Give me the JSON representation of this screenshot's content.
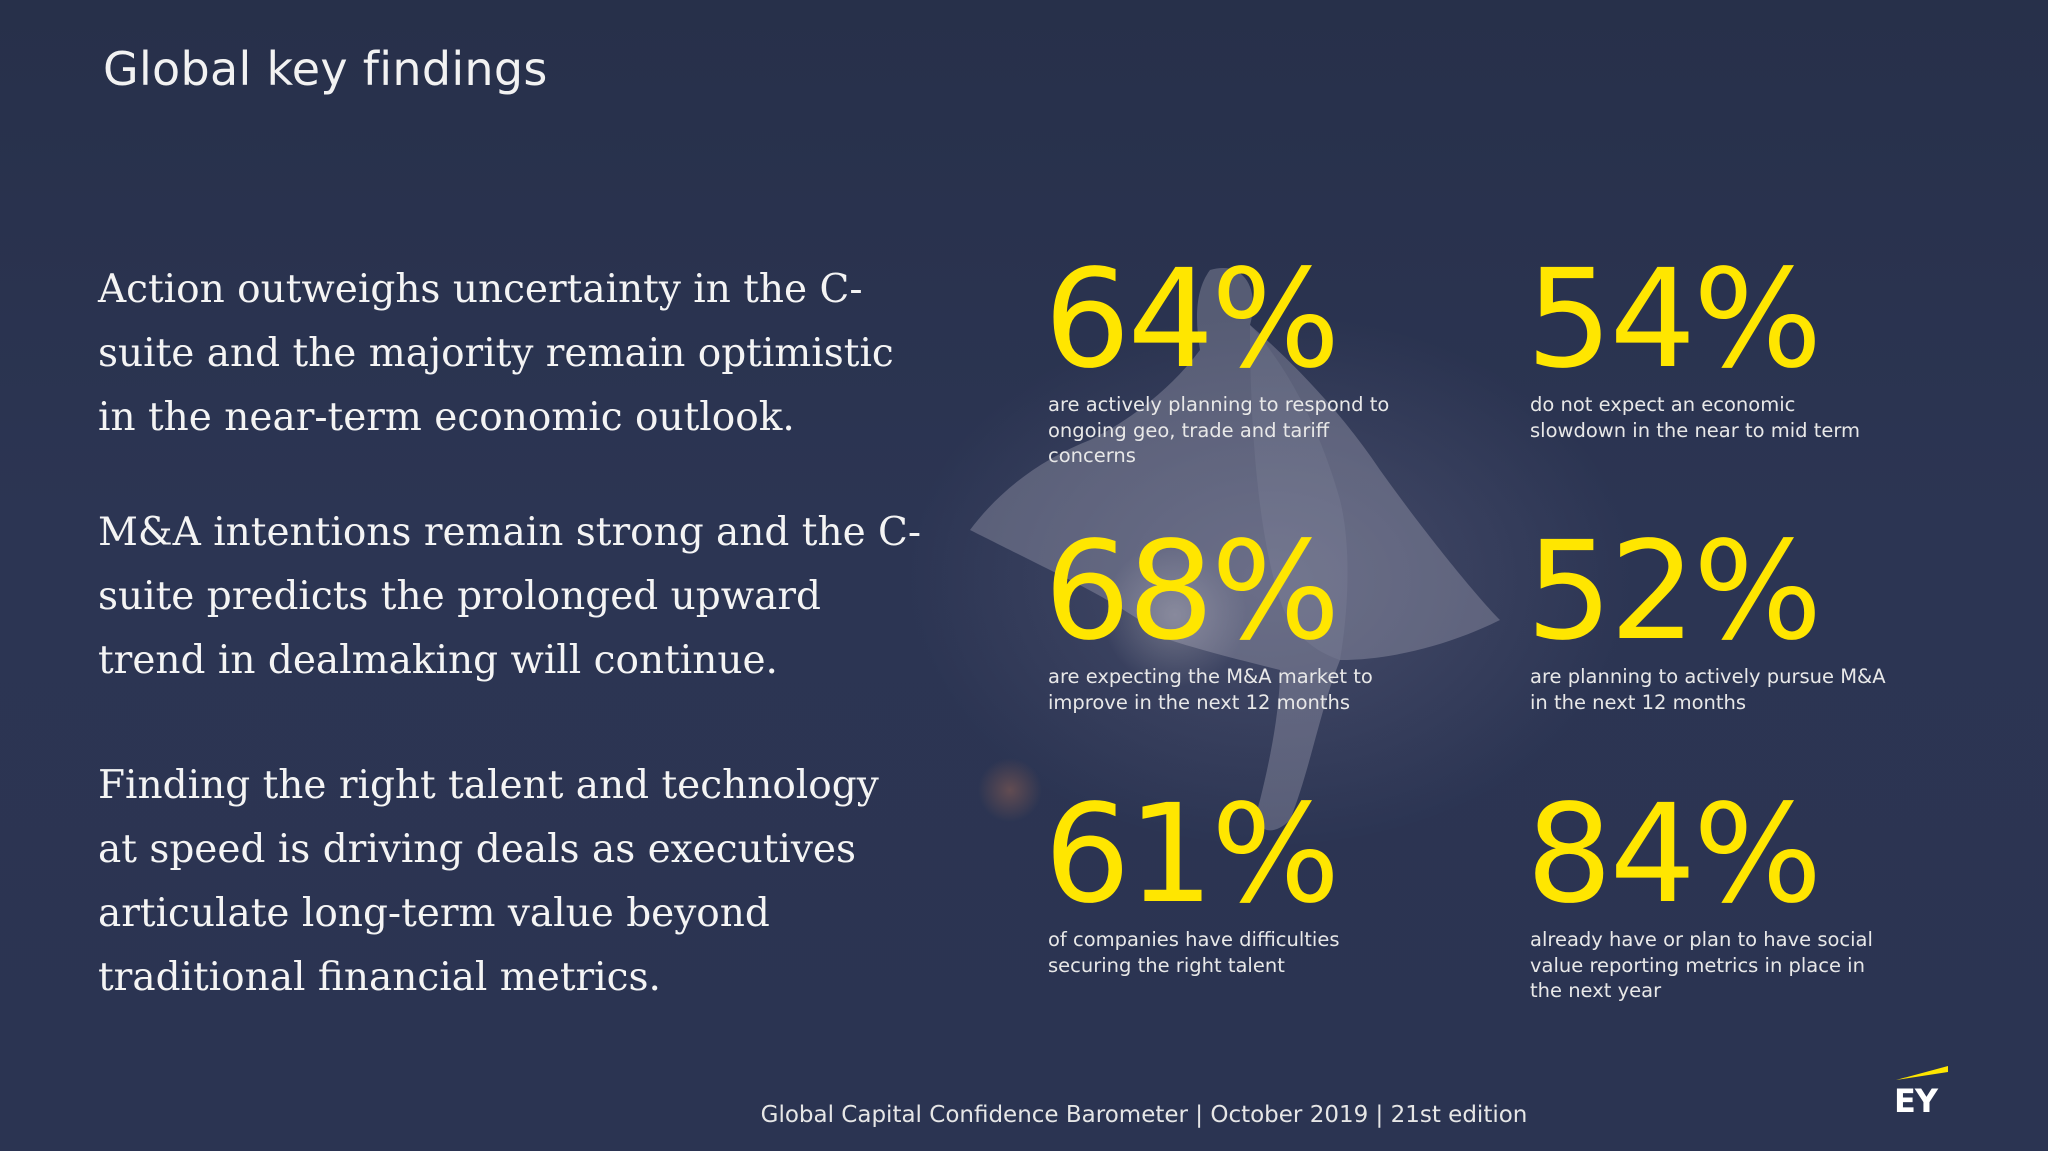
{
  "slide": {
    "title": "Global key findings",
    "statements": [
      "Action outweighs uncertainty in the C-suite and the majority remain optimistic in the near-term economic outlook.",
      "M&A intentions remain strong and the C-suite predicts the prolonged upward trend in dealmaking will continue.",
      "Finding the right talent and technology at speed is driving deals as executives articulate long-term value beyond traditional financial metrics."
    ],
    "stats": [
      {
        "value": "64%",
        "description": "are actively planning to respond to ongoing geo, trade and tariff concerns"
      },
      {
        "value": "54%",
        "description": "do not expect an economic slowdown in the near to mid term"
      },
      {
        "value": "68%",
        "description": "are expecting the M&A market to improve in the next 12 months"
      },
      {
        "value": "52%",
        "description": "are planning to actively pursue M&A in the next 12 months"
      },
      {
        "value": "61%",
        "description": "of companies have difficulties securing the right talent"
      },
      {
        "value": "84%",
        "description": "already have or plan to have social value reporting metrics in place in the next year"
      }
    ],
    "footer": "Global Capital Confidence Barometer | October 2019 | 21st edition",
    "logo_text": "EY"
  },
  "colors": {
    "background": "#2a3350",
    "accent": "#ffe600",
    "text": "#f4f4f4"
  },
  "icons": {
    "logo": "ey-logo-icon",
    "background_image": "wingsuit-flyer-photo"
  }
}
